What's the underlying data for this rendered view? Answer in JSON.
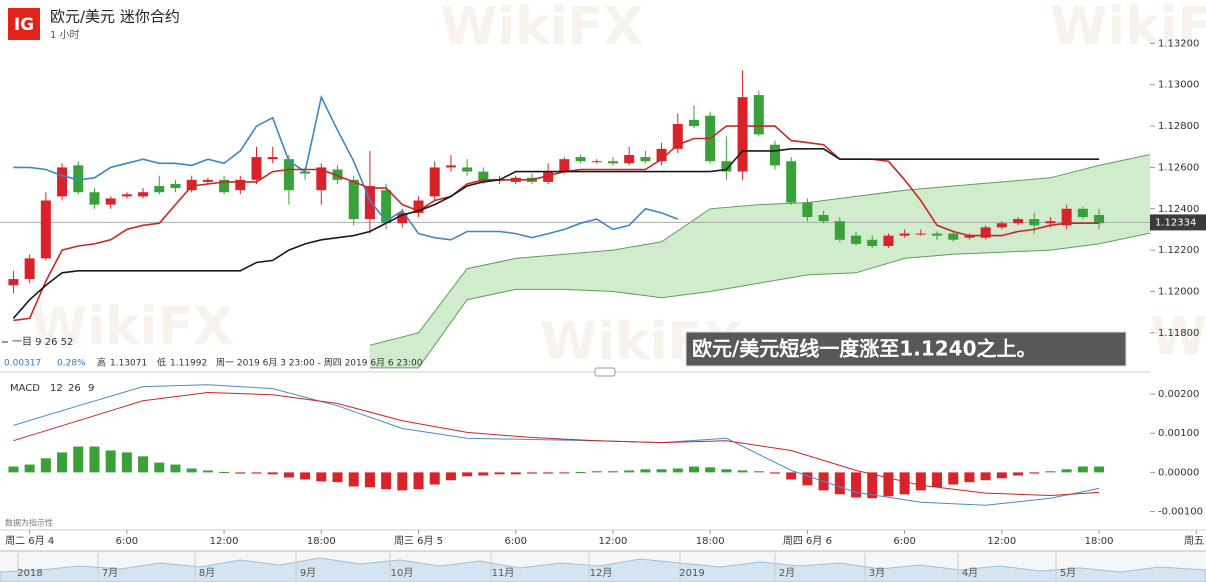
{
  "header": {
    "logo": "IG",
    "title": "欧元/美元 迷你合约",
    "interval": "1 小时"
  },
  "indicator_label": "一目 9 26 52",
  "stats": {
    "change": 0.00317,
    "change_pct": "0.28%",
    "high_label": "高",
    "high": 1.13071,
    "low_label": "低",
    "low": 1.11992,
    "range": "周一 2019 6月 3 23:00 - 周四 2019 6月 6 23:00"
  },
  "annotation": "欧元/美元短线一度涨至1.1240之上。",
  "disclaimer": "数据为指示性",
  "watermark": "WikiFX",
  "navigator": {
    "labels": [
      "2018",
      "7月",
      "8月",
      "9月",
      "10月",
      "11月",
      "12月",
      "2019",
      "2月",
      "3月",
      "4月",
      "5月"
    ]
  },
  "chart_data": [
    {
      "type": "candlestick",
      "xlim": [
        -1.83,
        72.6
      ],
      "xticks": [
        {
          "value": 0,
          "label": "周二 6月 4"
        },
        {
          "value": 6,
          "label": "6:00"
        },
        {
          "value": 12,
          "label": "12:00"
        },
        {
          "value": 18,
          "label": "18:00"
        },
        {
          "value": 24,
          "label": "周三 6月 5"
        },
        {
          "value": 30,
          "label": "6:00"
        },
        {
          "value": 36,
          "label": "12:00"
        },
        {
          "value": 42,
          "label": "18:00"
        },
        {
          "value": 48,
          "label": "周四 6月 6"
        },
        {
          "value": 54,
          "label": "6:00"
        },
        {
          "value": 60,
          "label": "12:00"
        },
        {
          "value": 66,
          "label": "18:00"
        },
        {
          "value": 72,
          "label": "周五"
        }
      ],
      "ylim": [
        1.1162,
        1.1341
      ],
      "yticks": [
        {
          "value": 1.132,
          "label": "1.13200"
        },
        {
          "value": 1.13,
          "label": "1.13000"
        },
        {
          "value": 1.128,
          "label": "1.12800"
        },
        {
          "value": 1.126,
          "label": "1.12600"
        },
        {
          "value": 1.124,
          "label": "1.12400"
        },
        {
          "value": 1.122,
          "label": "1.12200"
        },
        {
          "value": 1.12,
          "label": "1.12000"
        },
        {
          "value": 1.118,
          "label": "1.11800"
        }
      ],
      "last_price": 1.12334,
      "up_color": "#d9232a",
      "down_color": "#3aa13a",
      "x": [
        -1,
        0,
        1,
        2,
        3,
        4,
        5,
        6,
        7,
        8,
        9,
        10,
        11,
        12,
        13,
        14,
        15,
        16,
        17,
        18,
        19,
        20,
        21,
        22,
        23,
        24,
        25,
        26,
        27,
        28,
        29,
        30,
        31,
        32,
        33,
        34,
        35,
        36,
        37,
        38,
        39,
        40,
        41,
        42,
        43,
        44,
        45,
        46,
        47,
        48,
        49,
        50,
        51,
        52,
        53,
        54,
        55,
        56,
        57,
        58,
        59,
        60,
        61,
        62,
        63,
        64,
        65,
        66
      ],
      "open": [
        1.1203,
        1.1206,
        1.1216,
        1.1246,
        1.1261,
        1.1248,
        1.1242,
        1.1246,
        1.1246,
        1.1251,
        1.1252,
        1.1249,
        1.1253,
        1.1254,
        1.1249,
        1.1254,
        1.1264,
        1.1264,
        1.1258,
        1.1249,
        1.1259,
        1.1254,
        1.1235,
        1.1249,
        1.1233,
        1.1238,
        1.1246,
        1.126,
        1.126,
        1.1258,
        1.1254,
        1.1253,
        1.1255,
        1.1253,
        1.1258,
        1.1265,
        1.1263,
        1.1263,
        1.1262,
        1.1265,
        1.1263,
        1.1269,
        1.1283,
        1.1285,
        1.1263,
        1.1258,
        1.1295,
        1.1271,
        1.1263,
        1.1243,
        1.1237,
        1.1234,
        1.1227,
        1.1225,
        1.1222,
        1.1227,
        1.1228,
        1.1228,
        1.1228,
        1.1226,
        1.1226,
        1.1231,
        1.1233,
        1.1235,
        1.1233,
        1.1232,
        1.124,
        1.1237
      ],
      "high": [
        1.121,
        1.1218,
        1.1248,
        1.1262,
        1.1263,
        1.125,
        1.1246,
        1.1248,
        1.125,
        1.1256,
        1.1254,
        1.1256,
        1.1255,
        1.1256,
        1.1256,
        1.127,
        1.127,
        1.1266,
        1.126,
        1.1262,
        1.1261,
        1.1256,
        1.1268,
        1.1252,
        1.124,
        1.1246,
        1.1263,
        1.1266,
        1.1264,
        1.126,
        1.1256,
        1.1256,
        1.1257,
        1.1262,
        1.1265,
        1.1266,
        1.1264,
        1.1265,
        1.127,
        1.1268,
        1.1272,
        1.1286,
        1.129,
        1.1287,
        1.1275,
        1.1307,
        1.1297,
        1.1273,
        1.1265,
        1.1245,
        1.1239,
        1.1236,
        1.1229,
        1.1227,
        1.1228,
        1.123,
        1.123,
        1.1229,
        1.1229,
        1.1228,
        1.1232,
        1.1234,
        1.1236,
        1.1238,
        1.1236,
        1.1242,
        1.1241,
        1.124
      ],
      "low": [
        1.1199,
        1.1204,
        1.1215,
        1.1244,
        1.1247,
        1.124,
        1.124,
        1.1245,
        1.1245,
        1.1247,
        1.1248,
        1.1248,
        1.1252,
        1.1247,
        1.1247,
        1.1252,
        1.1262,
        1.1242,
        1.1254,
        1.1242,
        1.1252,
        1.1232,
        1.1228,
        1.123,
        1.1231,
        1.1236,
        1.1244,
        1.1258,
        1.1256,
        1.1252,
        1.1252,
        1.1252,
        1.1252,
        1.1252,
        1.1257,
        1.1262,
        1.1262,
        1.1261,
        1.1261,
        1.1262,
        1.1261,
        1.1267,
        1.1279,
        1.1262,
        1.1254,
        1.1254,
        1.1275,
        1.1259,
        1.1242,
        1.1234,
        1.1233,
        1.1224,
        1.1222,
        1.1221,
        1.1221,
        1.1226,
        1.1227,
        1.1225,
        1.1224,
        1.1225,
        1.1225,
        1.123,
        1.1232,
        1.1228,
        1.1231,
        1.123,
        1.1235,
        1.123
      ],
      "close": [
        1.1206,
        1.1216,
        1.1244,
        1.126,
        1.1248,
        1.1242,
        1.1245,
        1.1247,
        1.1248,
        1.1248,
        1.125,
        1.1254,
        1.1254,
        1.1248,
        1.1254,
        1.1265,
        1.1265,
        1.1249,
        1.1257,
        1.126,
        1.1254,
        1.1235,
        1.1251,
        1.1233,
        1.1238,
        1.1244,
        1.126,
        1.1261,
        1.1258,
        1.1253,
        1.1254,
        1.1255,
        1.1253,
        1.1258,
        1.1264,
        1.1263,
        1.1263,
        1.1262,
        1.1266,
        1.1263,
        1.1269,
        1.1281,
        1.128,
        1.1263,
        1.1258,
        1.1294,
        1.1276,
        1.1261,
        1.1243,
        1.1236,
        1.1234,
        1.1225,
        1.1223,
        1.1222,
        1.1227,
        1.1228,
        1.1228,
        1.1227,
        1.1225,
        1.1227,
        1.1231,
        1.1233,
        1.1235,
        1.1232,
        1.1234,
        1.124,
        1.1236,
        1.1233
      ],
      "cloud": {
        "fill": "#c9e7c4",
        "edge": "#5e9e5e",
        "x": [
          21,
          24,
          27,
          30,
          33,
          36,
          39,
          42,
          45,
          48,
          51,
          54,
          57,
          60,
          63,
          66,
          69,
          72
        ],
        "upper": [
          1.1174,
          1.118,
          1.1211,
          1.1216,
          1.1218,
          1.122,
          1.1224,
          1.124,
          1.1242,
          1.1243,
          1.1246,
          1.1249,
          1.1251,
          1.1253,
          1.1255,
          1.1261,
          1.1266,
          1.1268
        ],
        "lower": [
          1.1163,
          1.1163,
          1.1196,
          1.1201,
          1.1201,
          1.12,
          1.1197,
          1.12,
          1.1204,
          1.1208,
          1.1209,
          1.1216,
          1.1218,
          1.1219,
          1.122,
          1.1223,
          1.1228,
          1.123
        ]
      },
      "lines": [
        {
          "color": "#3f86c6",
          "x": [
            -1,
            0,
            1,
            2,
            3,
            4,
            5,
            6,
            7,
            8,
            9,
            10,
            11,
            12,
            13,
            14,
            15,
            16,
            17,
            18,
            19,
            20,
            21,
            22,
            23,
            24,
            25,
            26,
            27,
            28,
            29,
            30,
            31,
            32,
            33,
            34,
            35,
            36,
            37,
            38,
            39,
            40
          ],
          "values": [
            1.126,
            1.126,
            1.1259,
            1.1256,
            1.1254,
            1.1255,
            1.126,
            1.1262,
            1.1264,
            1.1262,
            1.1262,
            1.1261,
            1.1264,
            1.1262,
            1.1268,
            1.128,
            1.1284,
            1.1263,
            1.1258,
            1.1294,
            1.1278,
            1.1263,
            1.1244,
            1.1234,
            1.1239,
            1.1228,
            1.1226,
            1.1225,
            1.1229,
            1.1229,
            1.1229,
            1.1228,
            1.1226,
            1.1228,
            1.123,
            1.1233,
            1.1235,
            1.123,
            1.1232,
            1.124,
            1.1238,
            1.1235
          ]
        },
        {
          "color": "#c62828",
          "x": [
            -1,
            0,
            1,
            2,
            3,
            4,
            5,
            6,
            7,
            8,
            9,
            10,
            11,
            12,
            13,
            14,
            15,
            16,
            17,
            18,
            19,
            20,
            21,
            22,
            23,
            24,
            25,
            26,
            27,
            28,
            29,
            30,
            31,
            32,
            33,
            34,
            35,
            36,
            37,
            38,
            39,
            40,
            41,
            42,
            43,
            44,
            45,
            46,
            47,
            48,
            49,
            50,
            51,
            52,
            53,
            54,
            55,
            56,
            57,
            58,
            59,
            60,
            61,
            62,
            63,
            64,
            65,
            66
          ],
          "values": [
            1.1186,
            1.1187,
            1.1205,
            1.122,
            1.1222,
            1.1223,
            1.1225,
            1.123,
            1.1232,
            1.1233,
            1.1242,
            1.1251,
            1.1252,
            1.1253,
            1.1253,
            1.1253,
            1.1258,
            1.1259,
            1.1259,
            1.1259,
            1.1256,
            1.1253,
            1.125,
            1.125,
            1.1242,
            1.1239,
            1.1244,
            1.1246,
            1.1252,
            1.1254,
            1.1254,
            1.1254,
            1.1254,
            1.1256,
            1.1258,
            1.1259,
            1.1259,
            1.1259,
            1.1259,
            1.1259,
            1.1264,
            1.1271,
            1.1274,
            1.1274,
            1.128,
            1.128,
            1.128,
            1.128,
            1.1273,
            1.1272,
            1.1271,
            1.1264,
            1.1264,
            1.1264,
            1.1263,
            1.1254,
            1.1244,
            1.1232,
            1.1229,
            1.1227,
            1.1227,
            1.1227,
            1.1229,
            1.123,
            1.1232,
            1.1233,
            1.1233,
            1.1233
          ]
        },
        {
          "color": "#1a1a1a",
          "x": [
            -1,
            0,
            1,
            2,
            3,
            4,
            5,
            6,
            7,
            8,
            9,
            10,
            11,
            12,
            13,
            14,
            15,
            16,
            17,
            18,
            19,
            20,
            21,
            22,
            23,
            24,
            25,
            26,
            27,
            28,
            29,
            30,
            31,
            32,
            33,
            34,
            35,
            36,
            37,
            38,
            39,
            40,
            41,
            42,
            43,
            44,
            45,
            46,
            47,
            48,
            49,
            50,
            51,
            52,
            53,
            54,
            55,
            56,
            57,
            58,
            59,
            60,
            61,
            62,
            63,
            64,
            65,
            66
          ],
          "values": [
            1.1187,
            1.1196,
            1.1203,
            1.1209,
            1.121,
            1.121,
            1.121,
            1.121,
            1.121,
            1.121,
            1.121,
            1.121,
            1.121,
            1.121,
            1.121,
            1.1214,
            1.1215,
            1.122,
            1.1223,
            1.1225,
            1.1226,
            1.1227,
            1.1229,
            1.1233,
            1.1237,
            1.1239,
            1.1242,
            1.1246,
            1.1251,
            1.1253,
            1.1254,
            1.1258,
            1.1258,
            1.1258,
            1.1258,
            1.1258,
            1.1258,
            1.1258,
            1.1258,
            1.1258,
            1.1258,
            1.1258,
            1.1258,
            1.1258,
            1.1259,
            1.1268,
            1.1268,
            1.1268,
            1.1269,
            1.1269,
            1.1269,
            1.1264,
            1.1264,
            1.1264,
            1.1264,
            1.1264,
            1.1264,
            1.1264,
            1.1264,
            1.1264,
            1.1264,
            1.1264,
            1.1264,
            1.1264,
            1.1264,
            1.1264,
            1.1264,
            1.1264
          ]
        }
      ]
    },
    {
      "type": "macd",
      "title": "MACD",
      "params": [
        12,
        26,
        9
      ],
      "xlim": [
        -1.83,
        72.6
      ],
      "ylim": [
        -0.00142,
        0.00241
      ],
      "yticks": [
        {
          "value": 0.002,
          "label": "0.00200"
        },
        {
          "value": 0.001,
          "label": "0.00100"
        },
        {
          "value": 0,
          "label": "0.00000"
        },
        {
          "value": -0.001,
          "label": "-0.00100"
        }
      ],
      "histogram": {
        "pos_color": "#3aa13a",
        "neg_color": "#d9232a",
        "x": [
          -1,
          0,
          1,
          2,
          3,
          4,
          5,
          6,
          7,
          8,
          9,
          10,
          11,
          12,
          13,
          14,
          15,
          16,
          17,
          18,
          19,
          20,
          21,
          22,
          23,
          24,
          25,
          26,
          27,
          28,
          29,
          30,
          31,
          32,
          33,
          34,
          35,
          36,
          37,
          38,
          39,
          40,
          41,
          42,
          43,
          44,
          45,
          46,
          47,
          48,
          49,
          50,
          51,
          52,
          53,
          54,
          55,
          56,
          57,
          58,
          59,
          60,
          61,
          62,
          63,
          64,
          65,
          66
        ],
        "values": [
          0.00015,
          0.0002,
          0.00036,
          0.00051,
          0.00066,
          0.00066,
          0.00056,
          0.00051,
          0.00041,
          0.00025,
          0.0002,
          0.0001,
          5e-05,
          1e-05,
          -3e-05,
          -3e-05,
          -5e-05,
          -0.00013,
          -0.00018,
          -0.00023,
          -0.00025,
          -0.00036,
          -0.00038,
          -0.00043,
          -0.00046,
          -0.00043,
          -0.00031,
          -0.0002,
          -0.0001,
          -8e-05,
          -5e-05,
          -5e-05,
          -3e-05,
          -3e-05,
          -1e-05,
          1e-05,
          3e-05,
          3e-05,
          5e-05,
          8e-05,
          8e-05,
          0.0001,
          0.00015,
          0.00013,
          8e-05,
          5e-05,
          3e-05,
          -3e-05,
          -0.00018,
          -0.00033,
          -0.00046,
          -0.00056,
          -0.00064,
          -0.00066,
          -0.00061,
          -0.00056,
          -0.00046,
          -0.00038,
          -0.00031,
          -0.00025,
          -0.0002,
          -0.00015,
          -8e-05,
          -3e-05,
          3e-05,
          8e-05,
          0.00015,
          0.00015
        ]
      },
      "lines": [
        {
          "color": "#4a8cc8",
          "x": [
            -1,
            3,
            7,
            11,
            15,
            19,
            23,
            27,
            31,
            35,
            39,
            43,
            47,
            51,
            55,
            59,
            63,
            66
          ],
          "values": [
            0.0012,
            0.0017,
            0.00219,
            0.00224,
            0.00214,
            0.0017,
            0.00112,
            0.00087,
            0.00084,
            0.00081,
            0.00076,
            0.00087,
            5e-05,
            -0.00051,
            -0.00076,
            -0.00084,
            -0.00066,
            -0.00041
          ]
        },
        {
          "color": "#c62828",
          "x": [
            -1,
            3,
            7,
            11,
            15,
            19,
            23,
            27,
            31,
            35,
            39,
            43,
            47,
            51,
            55,
            59,
            63,
            66
          ],
          "values": [
            0.00081,
            0.00132,
            0.00183,
            0.00204,
            0.00198,
            0.00176,
            0.00132,
            0.00102,
            0.00089,
            0.00081,
            0.00076,
            0.00081,
            0.00056,
            5e-05,
            -0.00033,
            -0.00053,
            -0.00059,
            -0.00051
          ]
        }
      ]
    }
  ]
}
